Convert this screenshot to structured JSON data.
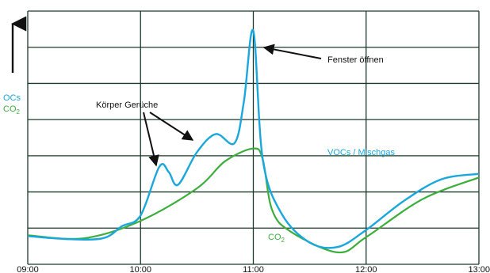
{
  "chart_data": {
    "type": "line",
    "title": "",
    "xlabel": "",
    "ylabel_top": "OCs",
    "ylabel_bottom": "CO",
    "ylabel_bottom_sub": "2",
    "x_ticks": [
      "09:00",
      "10:00",
      "11:00",
      "12:00",
      "13:00"
    ],
    "xlim": [
      "09:00",
      "13:00"
    ],
    "ylim": [
      0,
      7
    ],
    "y_gridlines": [
      0,
      1,
      2,
      3,
      4,
      5,
      6,
      7
    ],
    "y_ticks_shown": false,
    "grid": true,
    "colors": {
      "vocs": "#1aa7dc",
      "co2": "#3cae3c",
      "grid": "#1c3a2c",
      "annotation": "#111111"
    },
    "series": [
      {
        "name": "VOCs / Mischgas",
        "values": [
          {
            "x": "09:00",
            "y": 0.78
          },
          {
            "x": "09:20",
            "y": 0.7
          },
          {
            "x": "09:40",
            "y": 0.72
          },
          {
            "x": "09:50",
            "y": 1.05
          },
          {
            "x": "10:00",
            "y": 1.35
          },
          {
            "x": "10:10",
            "y": 2.7
          },
          {
            "x": "10:15",
            "y": 2.55
          },
          {
            "x": "10:20",
            "y": 2.2
          },
          {
            "x": "10:30",
            "y": 3.1
          },
          {
            "x": "10:40",
            "y": 3.6
          },
          {
            "x": "10:50",
            "y": 3.35
          },
          {
            "x": "10:55",
            "y": 4.5
          },
          {
            "x": "11:00",
            "y": 6.45
          },
          {
            "x": "11:05",
            "y": 2.9
          },
          {
            "x": "11:15",
            "y": 1.4
          },
          {
            "x": "11:30",
            "y": 0.6
          },
          {
            "x": "11:45",
            "y": 0.48
          },
          {
            "x": "12:00",
            "y": 0.95
          },
          {
            "x": "12:20",
            "y": 1.75
          },
          {
            "x": "12:40",
            "y": 2.35
          },
          {
            "x": "13:00",
            "y": 2.5
          }
        ]
      },
      {
        "name": "CO",
        "name_sub": "2",
        "values": [
          {
            "x": "09:00",
            "y": 0.8
          },
          {
            "x": "09:30",
            "y": 0.72
          },
          {
            "x": "10:00",
            "y": 1.2
          },
          {
            "x": "10:30",
            "y": 2.1
          },
          {
            "x": "10:45",
            "y": 2.85
          },
          {
            "x": "11:00",
            "y": 3.2
          },
          {
            "x": "11:05",
            "y": 2.9
          },
          {
            "x": "11:10",
            "y": 1.5
          },
          {
            "x": "11:20",
            "y": 0.9
          },
          {
            "x": "11:45",
            "y": 0.33
          },
          {
            "x": "12:00",
            "y": 0.75
          },
          {
            "x": "12:30",
            "y": 1.8
          },
          {
            "x": "13:00",
            "y": 2.4
          }
        ]
      }
    ],
    "annotations": {
      "fenster": "Fenster öffnen",
      "koerper": "Körper Gerüche",
      "vocs_label": "VOCs / Mischgas",
      "co2_label": "CO",
      "co2_label_sub": "2"
    }
  }
}
